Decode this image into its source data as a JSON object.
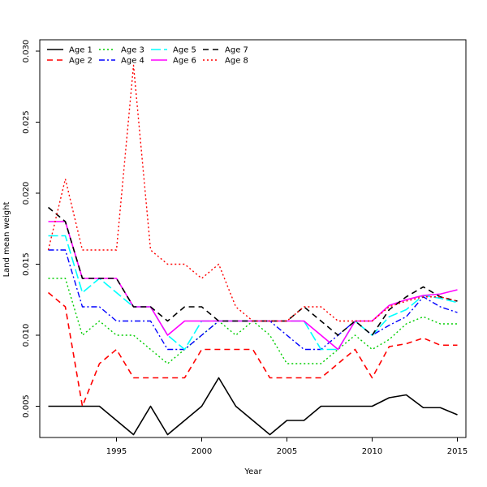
{
  "chart_data": {
    "type": "line",
    "title": "",
    "xlabel": "Year",
    "ylabel": "Land mean weight",
    "xlim": [
      1990.5,
      2015.5
    ],
    "ylim": [
      0.0028,
      0.0308
    ],
    "xticks": [
      1995,
      2000,
      2005,
      2010,
      2015
    ],
    "yticks": [
      0.005,
      0.01,
      0.015,
      0.02,
      0.025,
      0.03
    ],
    "ytick_labels": [
      "0.005",
      "0.010",
      "0.015",
      "0.020",
      "0.025",
      "0.030"
    ],
    "legend_position": "top-left",
    "grid": false,
    "x": [
      1991,
      1992,
      1993,
      1994,
      1995,
      1996,
      1997,
      1998,
      1999,
      2000,
      2001,
      2002,
      2003,
      2004,
      2005,
      2006,
      2007,
      2008,
      2009,
      2010,
      2011,
      2012,
      2013,
      2014,
      2015
    ],
    "series": [
      {
        "name": "Age 1",
        "color": "#000000",
        "dash": "",
        "width": 1.6,
        "values": [
          0.005,
          0.005,
          0.005,
          0.005,
          0.004,
          0.003,
          0.005,
          0.003,
          0.004,
          0.005,
          0.007,
          0.005,
          0.004,
          0.003,
          0.004,
          0.004,
          0.005,
          0.005,
          0.005,
          0.005,
          0.0056,
          0.0058,
          0.0049,
          0.0049,
          0.0044
        ]
      },
      {
        "name": "Age 2",
        "color": "#ff0000",
        "dash": "7,5",
        "width": 1.6,
        "values": [
          0.013,
          0.012,
          0.005,
          0.008,
          0.009,
          0.007,
          0.007,
          0.007,
          0.007,
          0.009,
          0.009,
          0.009,
          0.009,
          0.007,
          0.007,
          0.007,
          0.007,
          0.008,
          0.009,
          0.007,
          0.0092,
          0.0094,
          0.0098,
          0.0093,
          0.0093
        ]
      },
      {
        "name": "Age 3",
        "color": "#00cd00",
        "dash": "2,3",
        "width": 1.4,
        "values": [
          0.014,
          0.014,
          0.01,
          0.011,
          0.01,
          0.01,
          0.009,
          0.008,
          0.009,
          0.01,
          0.011,
          0.01,
          0.011,
          0.01,
          0.008,
          0.008,
          0.008,
          0.009,
          0.01,
          0.009,
          0.0097,
          0.0108,
          0.0113,
          0.0108,
          0.0108
        ]
      },
      {
        "name": "Age 4",
        "color": "#0000ff",
        "dash": "7,3,2,3",
        "width": 1.4,
        "values": [
          0.016,
          0.016,
          0.012,
          0.012,
          0.011,
          0.011,
          0.011,
          0.009,
          0.009,
          0.01,
          0.011,
          0.011,
          0.011,
          0.011,
          0.01,
          0.009,
          0.009,
          0.01,
          0.011,
          0.01,
          0.0107,
          0.0113,
          0.0127,
          0.012,
          0.0116
        ]
      },
      {
        "name": "Age 5",
        "color": "#00ffff",
        "dash": "12,4",
        "width": 1.6,
        "values": [
          0.017,
          0.017,
          0.013,
          0.014,
          0.013,
          0.012,
          0.012,
          0.01,
          0.009,
          0.011,
          0.011,
          0.011,
          0.011,
          0.011,
          0.011,
          0.011,
          0.009,
          0.009,
          0.011,
          0.01,
          0.0113,
          0.0118,
          0.0128,
          0.0126,
          0.0123
        ]
      },
      {
        "name": "Age 6",
        "color": "#ff00ff",
        "dash": "",
        "width": 1.6,
        "values": [
          0.018,
          0.018,
          0.014,
          0.014,
          0.014,
          0.012,
          0.012,
          0.01,
          0.011,
          0.011,
          0.011,
          0.011,
          0.011,
          0.011,
          0.011,
          0.011,
          0.01,
          0.009,
          0.011,
          0.011,
          0.0121,
          0.0125,
          0.0128,
          0.0129,
          0.0132
        ]
      },
      {
        "name": "Age 7",
        "color": "#000000",
        "dash": "7,5",
        "width": 1.6,
        "values": [
          0.019,
          0.018,
          0.014,
          0.014,
          0.014,
          0.012,
          0.012,
          0.011,
          0.012,
          0.012,
          0.011,
          0.011,
          0.011,
          0.011,
          0.011,
          0.012,
          0.011,
          0.01,
          0.011,
          0.01,
          0.0118,
          0.0127,
          0.0134,
          0.0127,
          0.0124
        ]
      },
      {
        "name": "Age 8",
        "color": "#ff0000",
        "dash": "2,3",
        "width": 1.4,
        "values": [
          0.016,
          0.021,
          0.016,
          0.016,
          0.016,
          0.029,
          0.016,
          0.015,
          0.015,
          0.014,
          0.015,
          0.012,
          0.011,
          0.011,
          0.011,
          0.012,
          0.012,
          0.011,
          0.011,
          0.011,
          0.012,
          0.0124,
          0.0127,
          0.0127,
          0.0124
        ]
      }
    ]
  }
}
